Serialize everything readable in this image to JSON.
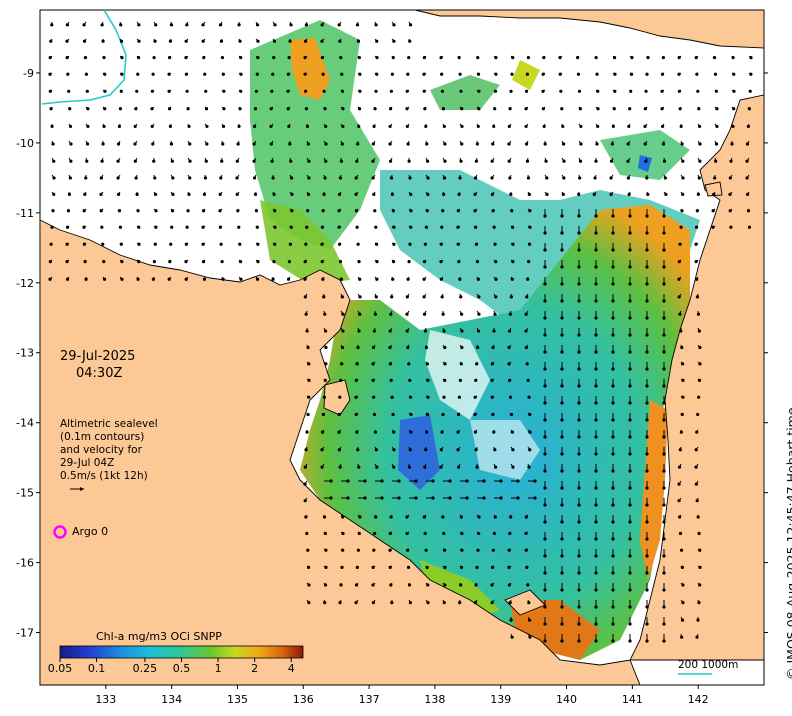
{
  "map": {
    "lon_ticks": [
      133,
      134,
      135,
      136,
      137,
      138,
      139,
      140,
      141,
      142
    ],
    "lat_ticks": [
      -9,
      -10,
      -11,
      -12,
      -13,
      -14,
      -15,
      -16,
      -17
    ],
    "lon_range": [
      132.0,
      143.0
    ],
    "lat_range": [
      -17.75,
      -8.1
    ]
  },
  "annotation": {
    "date": "29-Jul-2025",
    "time": "04:30Z",
    "info_lines": [
      "Altimetric sealevel",
      "(0.1m contours)",
      "and velocity for",
      "29-Jul 04Z",
      "0.5m/s (1kt 12h)"
    ]
  },
  "argo": {
    "label": "Argo 0",
    "color": "#ff00ff"
  },
  "colorbar": {
    "title": "Chl-a mg/m3 OCi SNPP",
    "ticks": [
      "0.05",
      "0.1",
      "0.25",
      "0.5",
      "1",
      "2",
      "4"
    ]
  },
  "scale_bar": {
    "label": "200  1000m"
  },
  "copyright": "© IMOS 08-Aug-2025 12:45:47 Hobart time",
  "colors": {
    "land": "#fcc996",
    "coast": "#000000",
    "contour": "#22cccc"
  }
}
